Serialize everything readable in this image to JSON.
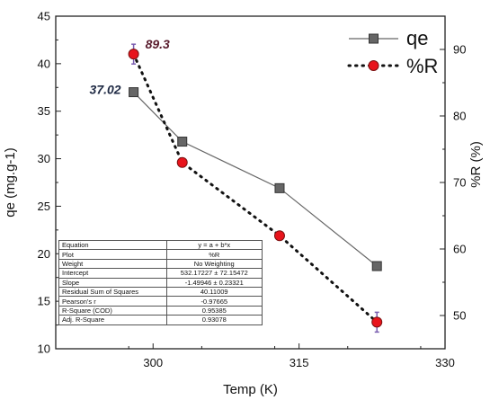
{
  "chart_data": {
    "type": "line",
    "xlabel": "Temp (K)",
    "ylabel_left": "qe (mg.g-1)",
    "ylabel_right": "%R (%)",
    "xlim": [
      290,
      330
    ],
    "ylim_left": [
      10,
      45
    ],
    "ylim_right": [
      45,
      95
    ],
    "x_ticks": [
      300,
      315,
      330
    ],
    "y_left_ticks": [
      10,
      15,
      20,
      25,
      30,
      35,
      40,
      45
    ],
    "y_right_ticks": [
      50,
      60,
      70,
      80,
      90
    ],
    "legend_position": "top-right",
    "series": [
      {
        "name": "qe",
        "axis": "left",
        "marker": "square",
        "line": "solid",
        "color": "#666666",
        "x": [
          298,
          303,
          313,
          323
        ],
        "values": [
          37.0,
          31.8,
          26.9,
          18.7
        ]
      },
      {
        "name": "%R",
        "axis": "right",
        "marker": "circle",
        "line": "dotted",
        "color": "#e8141c",
        "x": [
          298,
          303,
          313,
          323
        ],
        "values": [
          89.3,
          73.0,
          62.0,
          49.0
        ]
      }
    ],
    "annotations": [
      {
        "text": "89.3",
        "series": "%R",
        "point": 0,
        "color": "#5a1d2e"
      },
      {
        "text": "37.02",
        "series": "qe",
        "point": 0,
        "color": "#1f2a44"
      }
    ],
    "fit_table": [
      [
        "Equation",
        "y = a + b*x"
      ],
      [
        "Plot",
        "%R"
      ],
      [
        "Weight",
        "No Weighting"
      ],
      [
        "Intercept",
        "532.17227 ± 72.15472"
      ],
      [
        "Slope",
        "-1.49946 ± 0.23321"
      ],
      [
        "Residual Sum of Squares",
        "40.11009"
      ],
      [
        "Pearson's r",
        "-0.97665"
      ],
      [
        "R-Square (COD)",
        "0.95385"
      ],
      [
        "Adj. R-Square",
        "0.93078"
      ]
    ]
  }
}
